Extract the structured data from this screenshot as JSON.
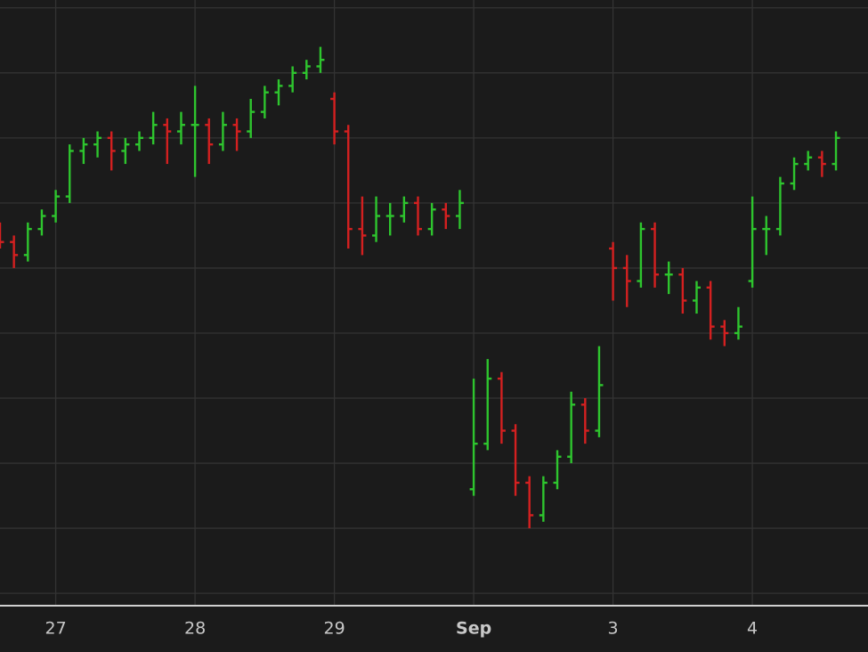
{
  "chart_data": {
    "type": "ohlc",
    "x": [
      -0.4,
      -0.3,
      -0.2,
      -0.1,
      0.0,
      0.1,
      0.2,
      0.3,
      0.4,
      0.5,
      0.6,
      0.7,
      0.8,
      0.9,
      1.0,
      1.1,
      1.2,
      1.3,
      1.4,
      1.5,
      1.6,
      1.7,
      1.8,
      1.9,
      2.0,
      2.1,
      2.2,
      2.3,
      2.4,
      2.5,
      2.6,
      2.7,
      2.8,
      2.9,
      3.0,
      3.1,
      3.2,
      3.3,
      3.4,
      3.5,
      3.6,
      3.7,
      3.8,
      3.9,
      4.0,
      4.1,
      4.2,
      4.3,
      4.4,
      4.5,
      4.6,
      4.7,
      4.8,
      4.9,
      5.0,
      5.1,
      5.2,
      5.3,
      5.4,
      5.5,
      5.6
    ],
    "open": [
      56,
      54,
      52,
      56,
      58,
      61,
      68,
      69,
      70,
      68,
      69,
      70,
      72,
      71,
      72,
      72,
      69,
      72,
      71,
      74,
      77,
      78,
      80,
      81,
      76,
      71,
      56,
      55,
      58,
      58,
      60,
      56,
      59,
      58,
      16,
      23,
      33,
      25,
      17,
      12,
      17,
      21,
      29,
      25,
      53,
      50,
      48,
      56,
      49,
      49,
      45,
      47,
      41,
      40,
      48,
      56,
      56,
      63,
      66,
      67,
      66
    ],
    "high": [
      57,
      55,
      57,
      59,
      62,
      69,
      70,
      71,
      71,
      70,
      71,
      74,
      73,
      74,
      78,
      73,
      74,
      73,
      76,
      78,
      79,
      81,
      82,
      84,
      77,
      72,
      61,
      61,
      60,
      61,
      61,
      60,
      60,
      62,
      33,
      36,
      34,
      26,
      18,
      18,
      22,
      31,
      30,
      38,
      54,
      52,
      57,
      57,
      51,
      50,
      48,
      48,
      42,
      44,
      61,
      58,
      64,
      67,
      68,
      68,
      71
    ],
    "low": [
      53,
      50,
      51,
      55,
      57,
      60,
      66,
      67,
      65,
      66,
      68,
      69,
      66,
      69,
      64,
      66,
      68,
      68,
      70,
      73,
      75,
      77,
      79,
      80,
      69,
      53,
      52,
      54,
      55,
      57,
      55,
      55,
      56,
      56,
      15,
      22,
      23,
      15,
      10,
      11,
      16,
      20,
      23,
      24,
      45,
      44,
      47,
      47,
      46,
      43,
      43,
      39,
      38,
      39,
      47,
      52,
      55,
      62,
      65,
      64,
      65
    ],
    "close": [
      54,
      52,
      56,
      58,
      61,
      68,
      69,
      70,
      68,
      69,
      70,
      72,
      71,
      72,
      72,
      69,
      72,
      71,
      74,
      77,
      78,
      80,
      81,
      82,
      71,
      56,
      55,
      58,
      58,
      60,
      56,
      59,
      58,
      60,
      23,
      33,
      25,
      17,
      12,
      17,
      21,
      29,
      25,
      32,
      50,
      48,
      56,
      49,
      49,
      45,
      47,
      41,
      40,
      41,
      56,
      56,
      63,
      66,
      67,
      66,
      70
    ],
    "up_color": "#2ec52e",
    "down_color": "#d42020",
    "xlim": [
      -0.4,
      5.83
    ],
    "xticks": [
      {
        "value": 0,
        "label": "27"
      },
      {
        "value": 1,
        "label": "28"
      },
      {
        "value": 2,
        "label": "29"
      },
      {
        "value": 3,
        "label": "Sep"
      },
      {
        "value": 4,
        "label": "3"
      },
      {
        "value": 5,
        "label": "4"
      }
    ],
    "ylim": [
      -1.9,
      91.2
    ],
    "ygrid": [
      0,
      10,
      20,
      30,
      40,
      50,
      60,
      70,
      80,
      90
    ],
    "grid": true
  }
}
